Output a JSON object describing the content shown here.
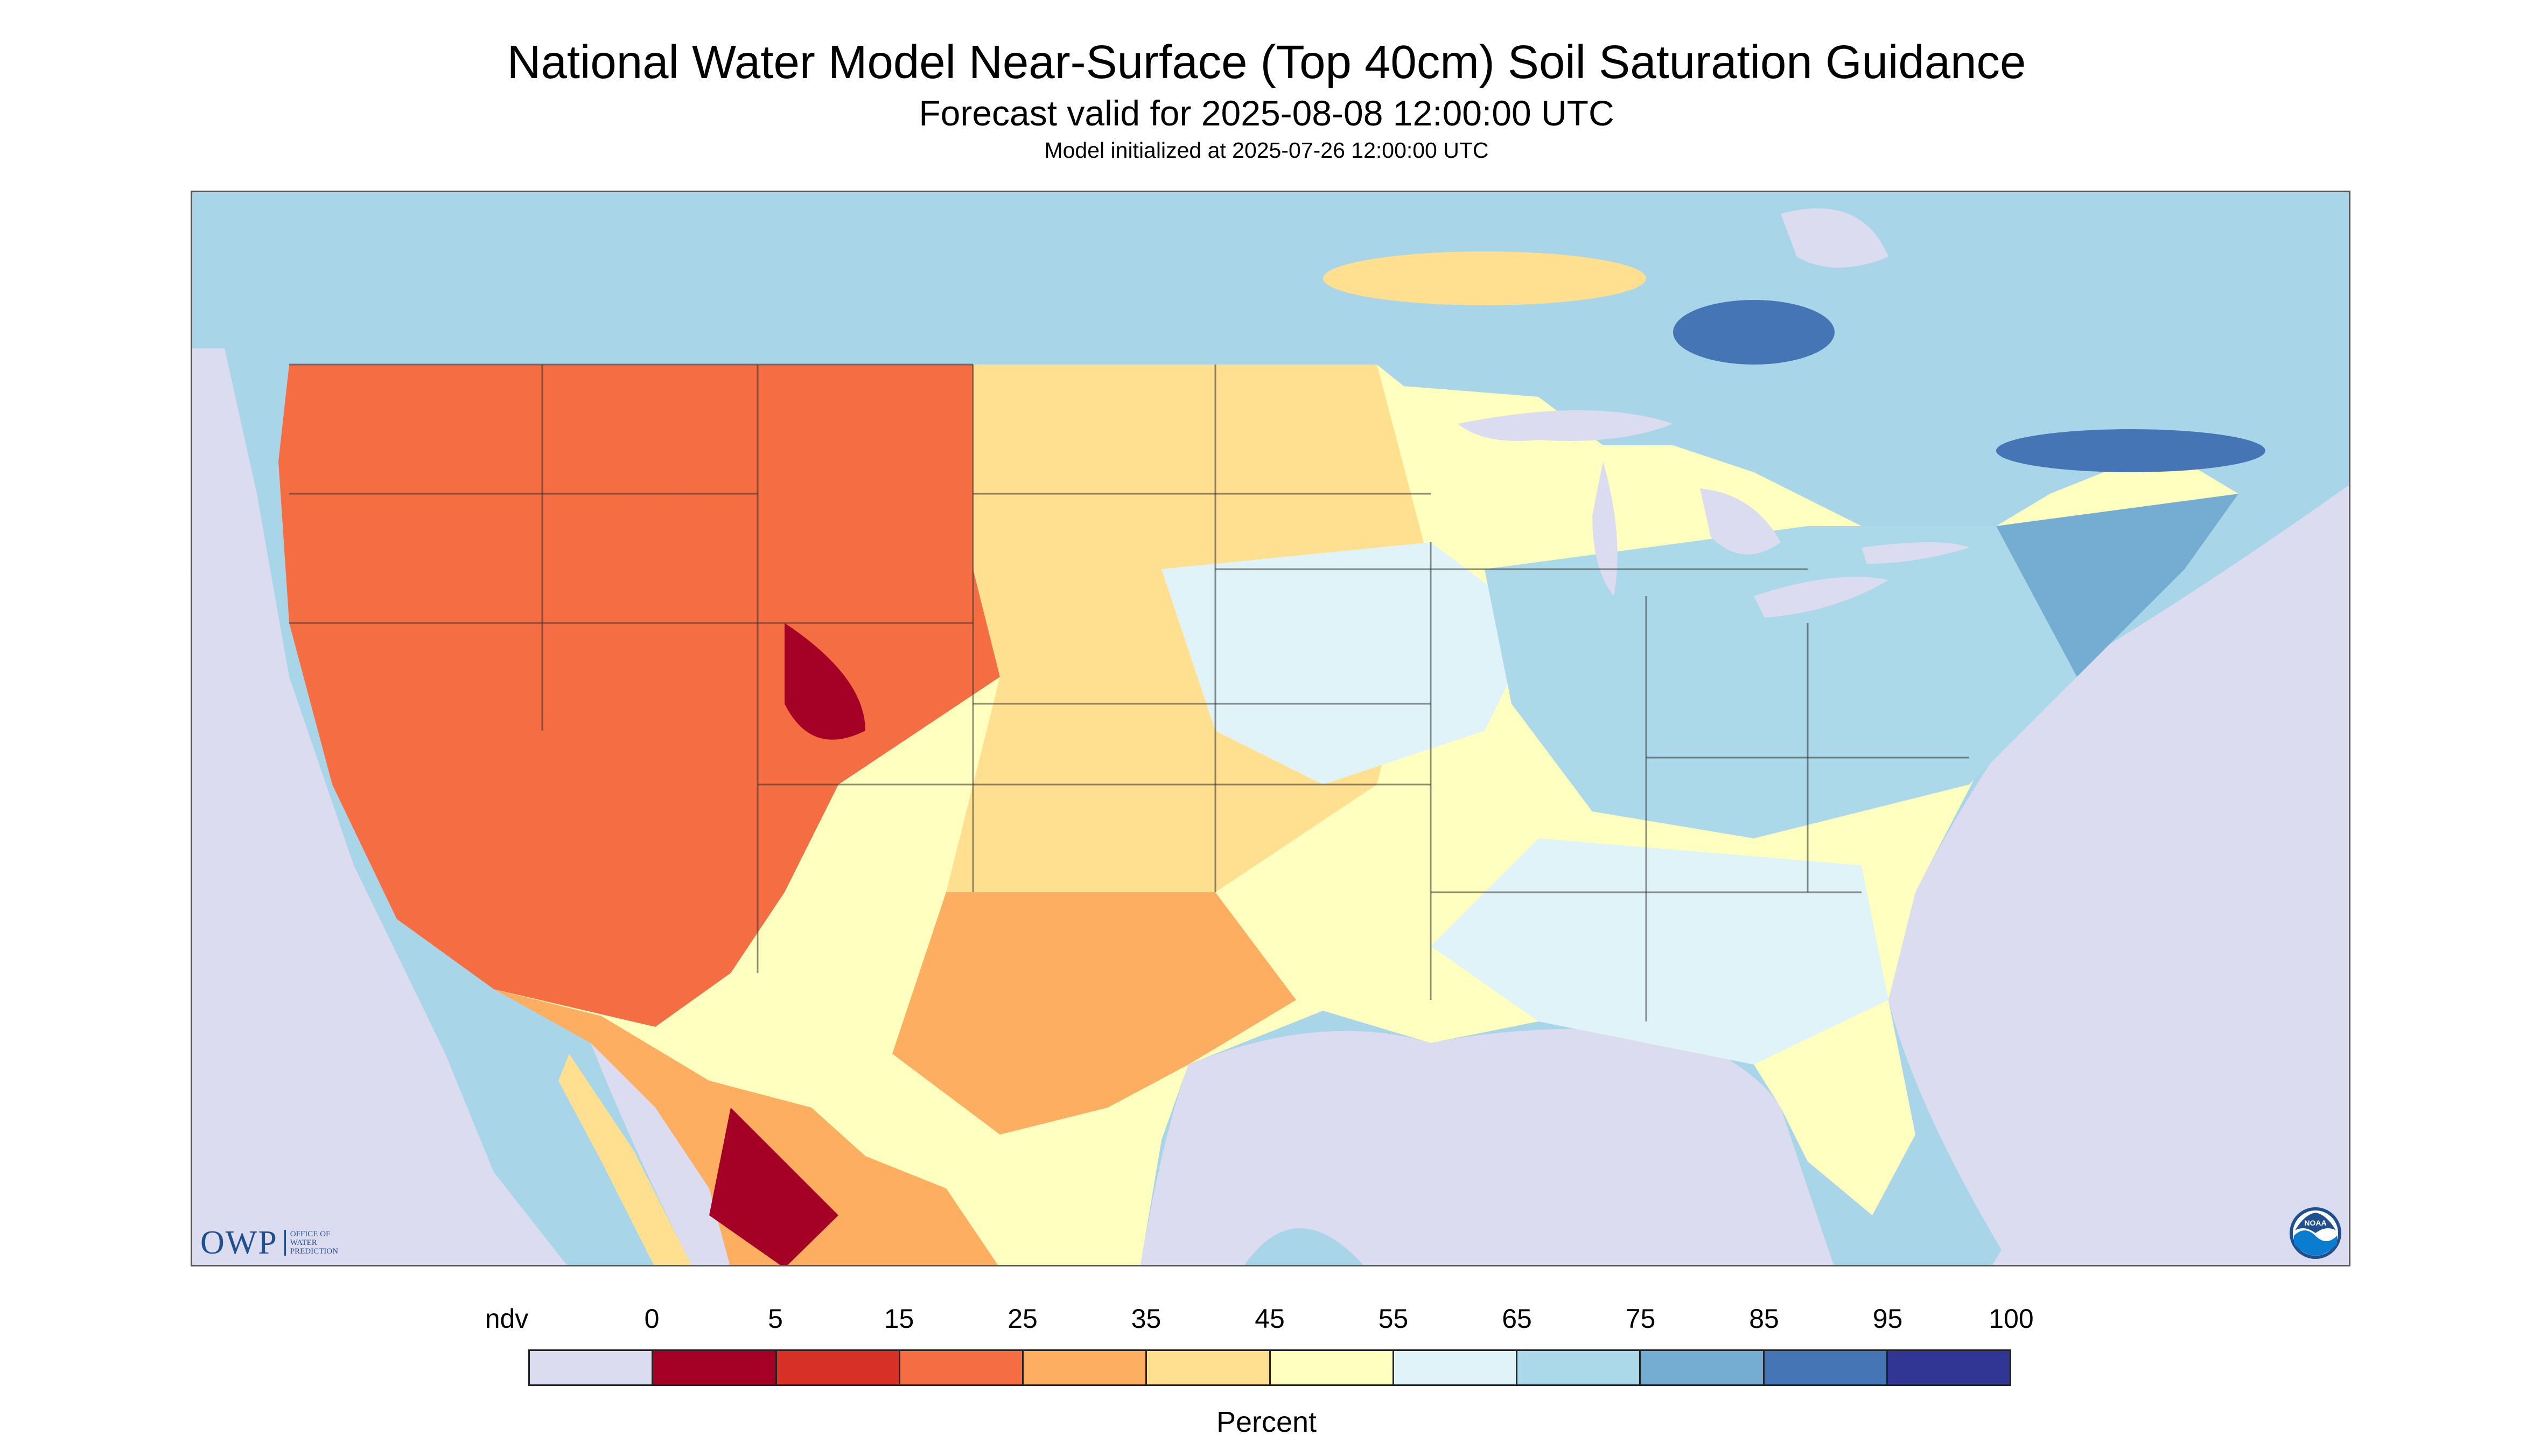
{
  "header": {
    "title": "National Water Model Near-Surface (Top 40cm) Soil Saturation Guidance",
    "subtitle": "Forecast valid for 2025-08-08 12:00:00 UTC",
    "init": "Model initialized at 2025-07-26 12:00:00 UTC"
  },
  "logos": {
    "owp_text": "OWP",
    "owp_sub": [
      "OFFICE OF",
      "WATER",
      "PREDICTION"
    ],
    "noaa_text": "NOAA"
  },
  "legend": {
    "unit": "Percent",
    "ticks": [
      "ndv",
      "0",
      "5",
      "15",
      "25",
      "35",
      "45",
      "55",
      "65",
      "75",
      "85",
      "95",
      "100"
    ],
    "colors": [
      "#dcdcf0",
      "#a50026",
      "#d73027",
      "#f46d43",
      "#fdae61",
      "#fee090",
      "#ffffbf",
      "#e0f3f8",
      "#abd9e9",
      "#74add1",
      "#4575b4",
      "#313695"
    ]
  },
  "map_colors": {
    "ndv": "#dcdcf0",
    "water": "#dcdcf0",
    "canada": "#a9d5e8",
    "dry_dark": "#a50026",
    "dry": "#f46d43",
    "mid_orange": "#fdae61",
    "yellow": "#fee090",
    "pale": "#ffffbf",
    "light_blue": "#e0f3f8",
    "blue": "#abd9e9",
    "mid_blue": "#74add1",
    "dark_blue": "#4575b4",
    "border": "#333333"
  }
}
